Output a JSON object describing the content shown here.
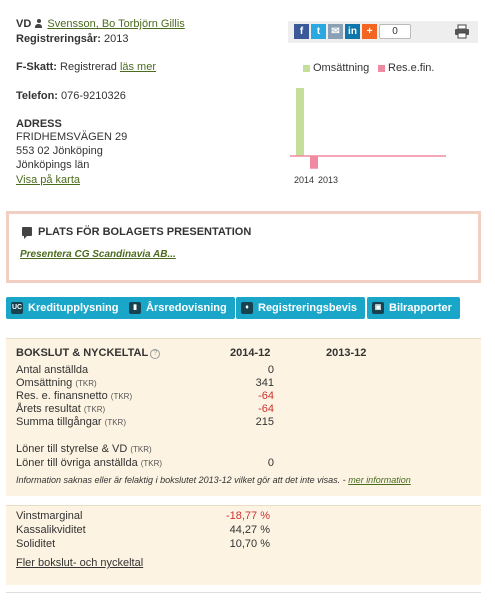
{
  "company": {
    "vd_label": "VD",
    "vd_name": "Svensson, Bo Torbjörn Gillis",
    "reg_year_label": "Registreringsår:",
    "reg_year": "2013",
    "fskatt_label": "F-Skatt:",
    "fskatt_value": "Registrerad",
    "fskatt_link": "läs mer",
    "phone_label": "Telefon:",
    "phone": "076-9210326",
    "address_label": "ADRESS",
    "address_lines": [
      "FRIDHEMSVÄGEN 29",
      "553 02 Jönköping",
      "Jönköpings län"
    ],
    "map_link": "Visa på karta"
  },
  "share": {
    "count": "0",
    "icons": [
      "facebook-icon",
      "twitter-icon",
      "mail-icon",
      "linkedin-icon",
      "plus-icon",
      "print-icon"
    ]
  },
  "chart_data": {
    "type": "bar",
    "categories": [
      "2014",
      "2013"
    ],
    "series": [
      {
        "name": "Omsättning",
        "values": [
          341,
          null
        ],
        "color": "#c5df9a"
      },
      {
        "name": "Res.e.fin.",
        "values": [
          -64,
          null
        ],
        "color": "#f08aa0"
      }
    ],
    "legend_placement": "top",
    "zero_line_color": "#f08aa0"
  },
  "presentation": {
    "title": "PLATS FÖR BOLAGETS PRESENTATION",
    "link": "Presentera CG Scandinavia AB..."
  },
  "buttons": [
    {
      "label": "Kreditupplysning",
      "icon": "uc-icon",
      "icon_text": "UC"
    },
    {
      "label": "Årsredovisning",
      "icon": "bar-chart-icon",
      "icon_text": "▮"
    },
    {
      "label": "Registreringsbevis",
      "icon": "certificate-icon",
      "icon_text": "♦"
    },
    {
      "label": "Bilrapporter",
      "icon": "car-icon",
      "icon_text": "▣"
    }
  ],
  "keyfigures": {
    "title": "BOKSLUT & NYCKELTAL",
    "help": "?",
    "col1": "2014-12",
    "col2": "2013-12",
    "tkr": "(TKR)",
    "rows": [
      {
        "label": "Antal anställda",
        "tkr": false,
        "v1": "0",
        "neg": false
      },
      {
        "label": "Omsättning",
        "tkr": true,
        "v1": "341",
        "neg": false
      },
      {
        "label": "Res. e. finansnetto",
        "tkr": true,
        "v1": "-64",
        "neg": true
      },
      {
        "label": "Årets resultat",
        "tkr": true,
        "v1": "-64",
        "neg": true
      },
      {
        "label": "Summa tillgångar",
        "tkr": true,
        "v1": "215",
        "neg": false
      }
    ],
    "salary_rows": [
      {
        "label": "Löner till styrelse & VD",
        "tkr": true,
        "v1": ""
      },
      {
        "label": "Löner till övriga anställda",
        "tkr": true,
        "v1": "0"
      }
    ],
    "note": "Information saknas eller är felaktig i bokslutet 2013-12 vilket gör att det inte visas. -",
    "note_link": "mer information"
  },
  "ratios": {
    "rows": [
      {
        "label": "Vinstmarginal",
        "v1": "-18,77 %",
        "neg": true
      },
      {
        "label": "Kassalikviditet",
        "v1": "44,27 %",
        "neg": false
      },
      {
        "label": "Soliditet",
        "v1": "10,70 %",
        "neg": false
      }
    ],
    "more_link": "Fler bokslut- och nyckeltal"
  }
}
